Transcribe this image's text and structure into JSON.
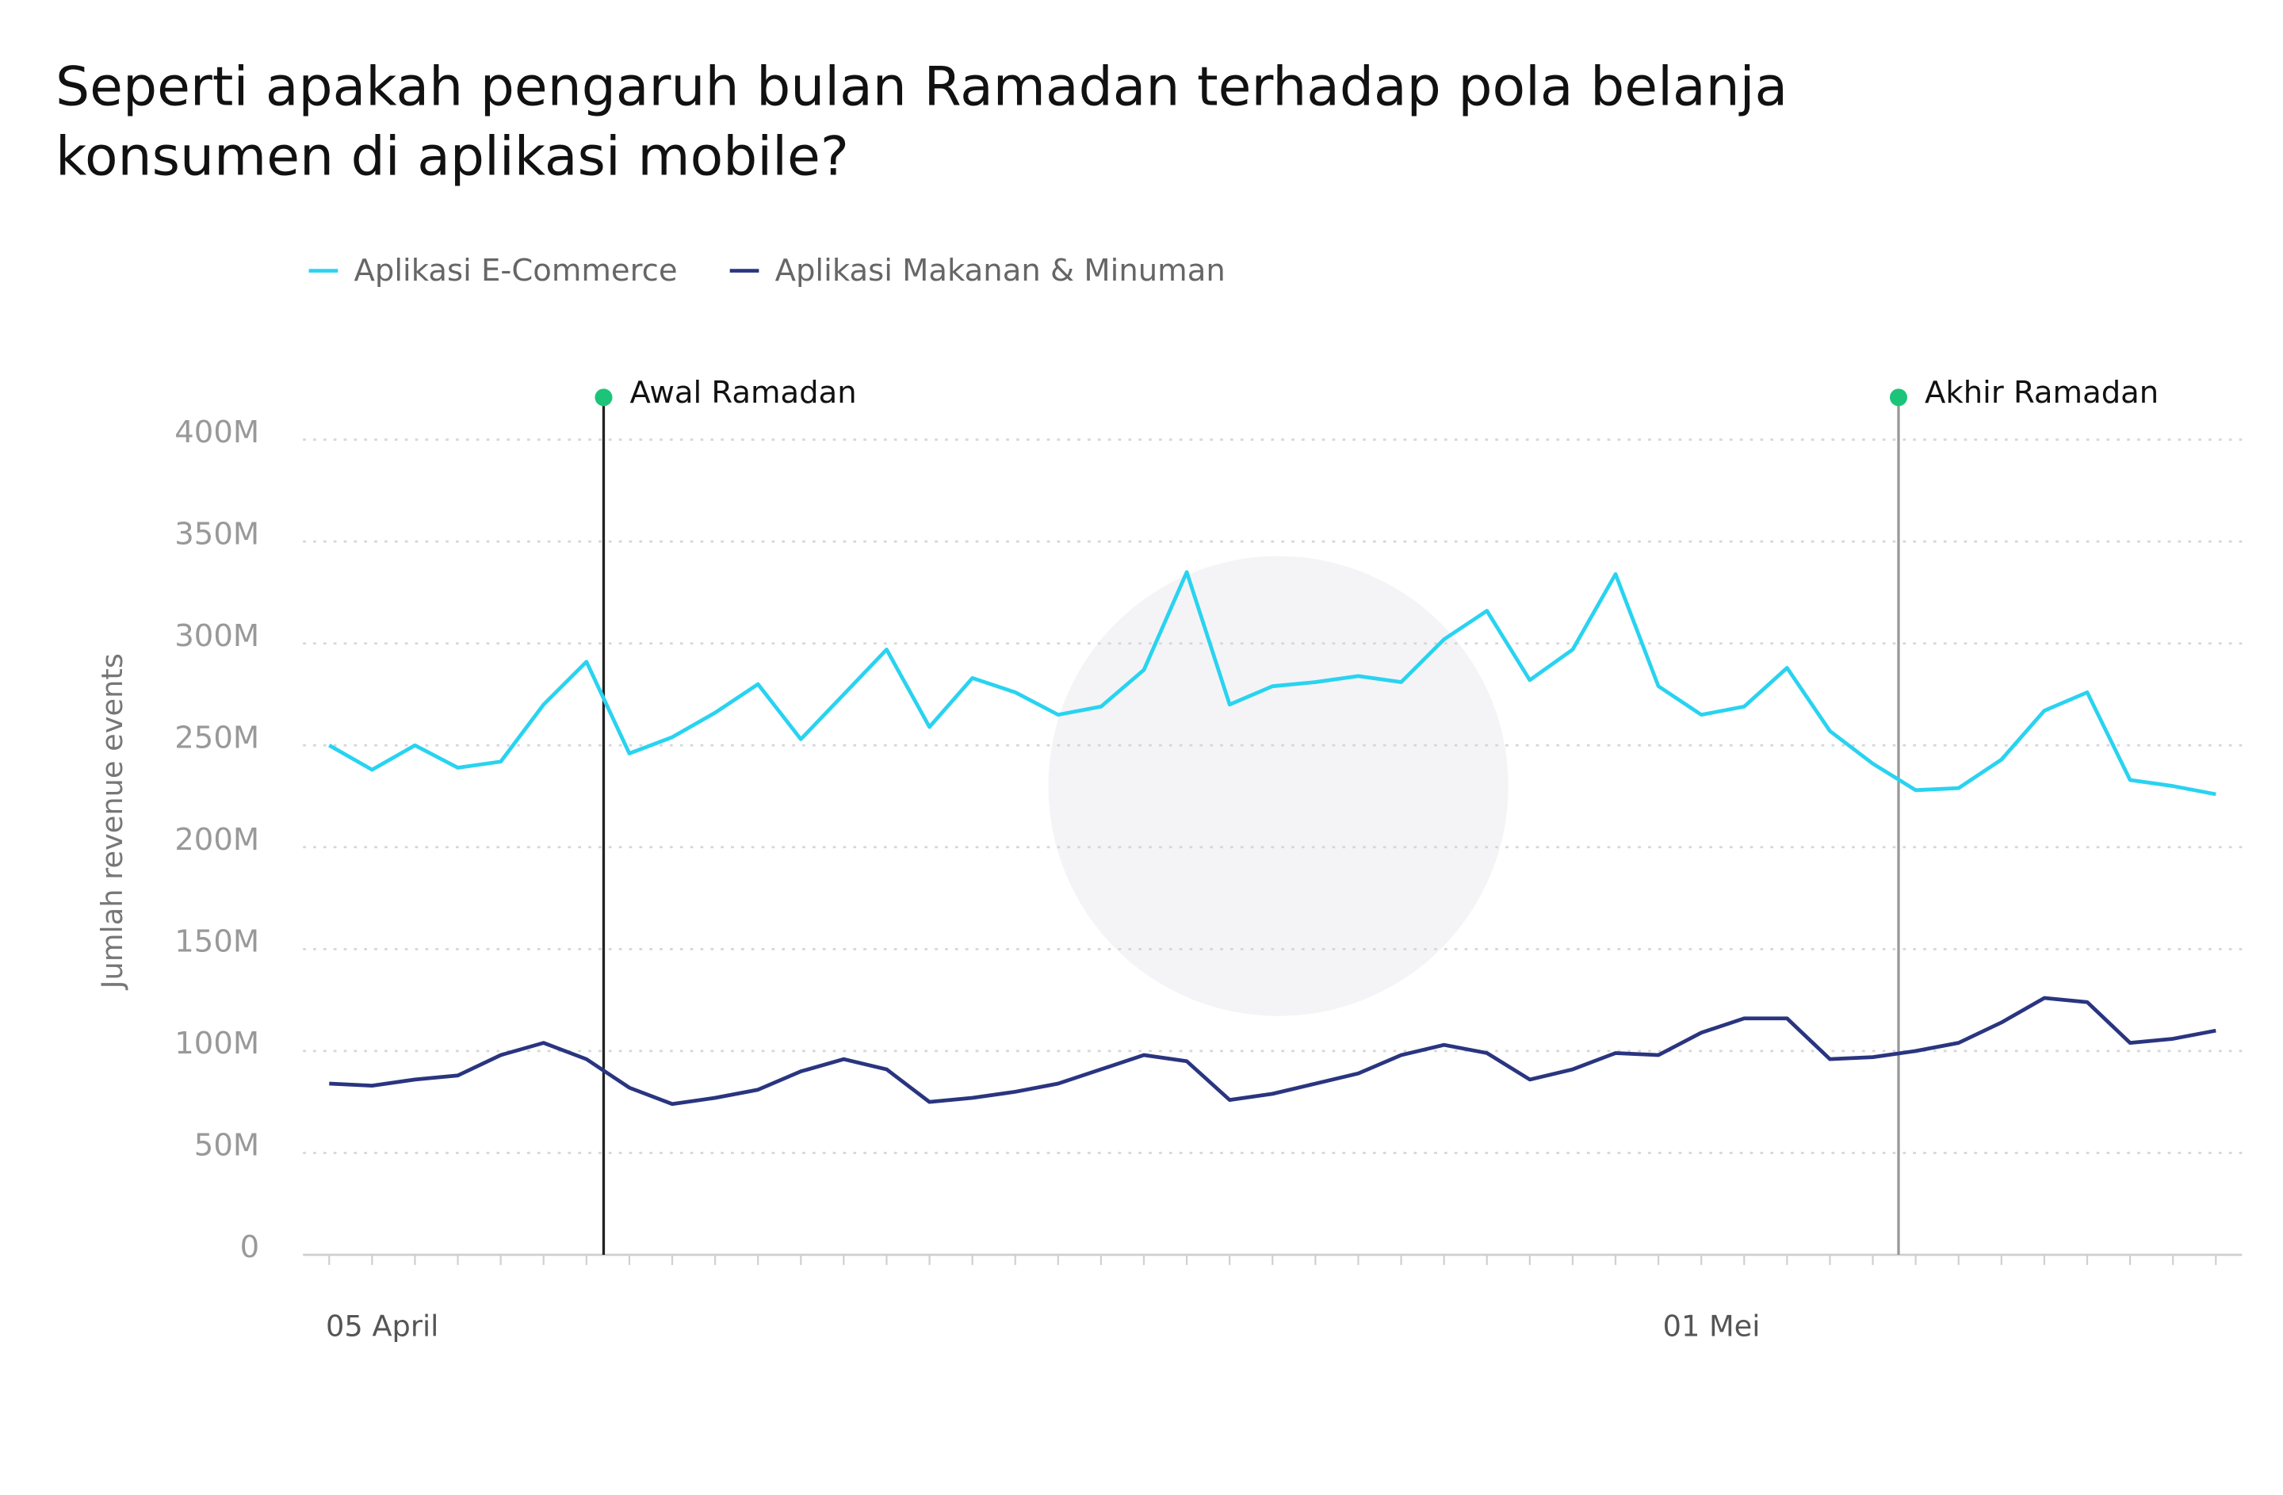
{
  "chart_data": {
    "type": "line",
    "title": [
      "Seperti apakah pengaruh bulan Ramadan terhadap pola belanja",
      "konsumen di aplikasi mobile?"
    ],
    "ylabel": "Jumlah revenue events",
    "categories": [
      null,
      "05 April",
      null,
      null,
      null,
      null,
      null,
      null,
      null,
      null,
      null,
      null,
      null,
      null,
      null,
      null,
      null,
      null,
      null,
      null,
      null,
      null,
      null,
      null,
      null,
      null,
      null,
      null,
      null,
      null,
      null,
      null,
      "01 Mei",
      null,
      null,
      null,
      null,
      null,
      null,
      null,
      null,
      null,
      null,
      null,
      null
    ],
    "series": [
      {
        "name": "Aplikasi E-Commerce",
        "color": "#29d3f0",
        "values": [
          250,
          238,
          250,
          239,
          242,
          270,
          291,
          246,
          254,
          266,
          280,
          253,
          275,
          297,
          259,
          283,
          276,
          265,
          269,
          287,
          335,
          270,
          279,
          281,
          284,
          281,
          302,
          316,
          282,
          297,
          334,
          279,
          265,
          269,
          288,
          257,
          241,
          228,
          229,
          243,
          267,
          276,
          233,
          230,
          226
        ]
      },
      {
        "name": "Aplikasi Makanan & Minuman",
        "color": "#2a3580",
        "values": [
          84,
          83,
          86,
          88,
          98,
          104,
          96,
          82,
          74,
          77,
          81,
          90,
          96,
          91,
          75,
          77,
          80,
          84,
          91,
          98,
          95,
          76,
          79,
          84,
          89,
          98,
          103,
          99,
          86,
          91,
          99,
          98,
          109,
          116,
          116,
          96,
          97,
          100,
          104,
          114,
          126,
          124,
          104,
          106,
          110
        ]
      }
    ],
    "ylim": [
      0,
      400
    ],
    "yticks": [
      0,
      {
        "value": 50,
        "label": "50M"
      },
      {
        "value": 100,
        "label": "100M"
      },
      {
        "value": 150,
        "label": "150M"
      },
      {
        "value": 200,
        "label": "200M"
      },
      {
        "value": 250,
        "label": "250M"
      },
      {
        "value": 300,
        "label": "300M"
      },
      {
        "value": 350,
        "label": "350M"
      },
      {
        "value": 400,
        "label": "400M"
      }
    ],
    "grid": true,
    "legend": "top",
    "annotations": [
      {
        "label": "Awal Ramadan",
        "x": 6.4,
        "color": "#222222",
        "dot_color": "#1cc47a"
      },
      {
        "label": "Akhir Ramadan",
        "x": 36.6,
        "color": "#999999",
        "dot_color": "#1cc47a"
      }
    ]
  }
}
